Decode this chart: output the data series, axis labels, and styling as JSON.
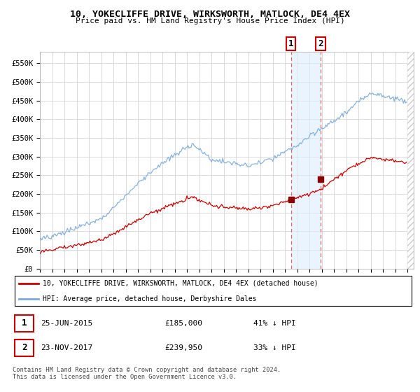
{
  "title": "10, YOKECLIFFE DRIVE, WIRKSWORTH, MATLOCK, DE4 4EX",
  "subtitle": "Price paid vs. HM Land Registry's House Price Index (HPI)",
  "ylabel_ticks": [
    "£0",
    "£50K",
    "£100K",
    "£150K",
    "£200K",
    "£250K",
    "£300K",
    "£350K",
    "£400K",
    "£450K",
    "£500K",
    "£550K"
  ],
  "ytick_values": [
    0,
    50000,
    100000,
    150000,
    200000,
    250000,
    300000,
    350000,
    400000,
    450000,
    500000,
    550000
  ],
  "ylim": [
    0,
    580000
  ],
  "xlim_start": 1995.0,
  "xlim_end": 2025.5,
  "hpi_color": "#7aaadd",
  "price_color": "#cc0000",
  "transaction1": {
    "date": "25-JUN-2015",
    "price": 185000,
    "year": 2015.48,
    "label": "1",
    "pct": "41%"
  },
  "transaction2": {
    "date": "23-NOV-2017",
    "price": 239950,
    "year": 2017.89,
    "label": "2",
    "pct": "33%"
  },
  "shade_color": "#ddeeff",
  "dashed_color": "#dd6666",
  "legend_line1": "10, YOKECLIFFE DRIVE, WIRKSWORTH, MATLOCK, DE4 4EX (detached house)",
  "legend_line2": "HPI: Average price, detached house, Derbyshire Dales",
  "footer": "Contains HM Land Registry data © Crown copyright and database right 2024.\nThis data is licensed under the Open Government Licence v3.0.",
  "table_rows": [
    {
      "num": "1",
      "date": "25-JUN-2015",
      "price": "£185,000",
      "pct": "41% ↓ HPI"
    },
    {
      "num": "2",
      "date": "23-NOV-2017",
      "price": "£239,950",
      "pct": "33% ↓ HPI"
    }
  ]
}
